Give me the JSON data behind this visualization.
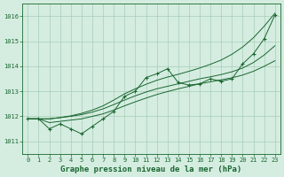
{
  "title": "Graphe pression niveau de la mer (hPa)",
  "bg_color": "#d4ede0",
  "grid_color": "#a8ccba",
  "line_color": "#1a6630",
  "ylim": [
    1010.5,
    1016.5
  ],
  "yticks": [
    1011,
    1012,
    1013,
    1014,
    1015,
    1016
  ],
  "xlim": [
    -0.5,
    23.5
  ],
  "xticks": [
    0,
    1,
    2,
    3,
    4,
    5,
    6,
    7,
    8,
    9,
    10,
    11,
    12,
    13,
    14,
    15,
    16,
    17,
    18,
    19,
    20,
    21,
    22,
    23
  ],
  "y_marker": [
    1011.9,
    1011.9,
    1011.5,
    1011.7,
    1011.5,
    1011.3,
    1011.6,
    1011.9,
    1012.2,
    1012.8,
    1013.0,
    1013.55,
    1013.7,
    1013.9,
    1013.35,
    1013.25,
    1013.3,
    1013.5,
    1013.4,
    1013.5,
    1014.1,
    1014.5,
    1015.1,
    1016.05
  ],
  "y_line1": [
    1011.9,
    1011.9,
    1011.75,
    1011.8,
    1011.85,
    1011.9,
    1012.0,
    1012.1,
    1012.25,
    1012.42,
    1012.58,
    1012.73,
    1012.87,
    1012.99,
    1013.1,
    1013.2,
    1013.3,
    1013.38,
    1013.46,
    1013.54,
    1013.65,
    1013.8,
    1014.0,
    1014.22
  ],
  "y_line2": [
    1011.9,
    1011.9,
    1011.9,
    1011.95,
    1012.0,
    1012.07,
    1012.17,
    1012.3,
    1012.47,
    1012.65,
    1012.82,
    1012.97,
    1013.1,
    1013.2,
    1013.3,
    1013.4,
    1013.5,
    1013.58,
    1013.67,
    1013.78,
    1013.93,
    1014.15,
    1014.45,
    1014.82
  ],
  "y_line3": [
    1011.9,
    1011.9,
    1011.9,
    1011.95,
    1012.02,
    1012.12,
    1012.25,
    1012.42,
    1012.65,
    1012.9,
    1013.1,
    1013.28,
    1013.44,
    1013.57,
    1013.68,
    1013.8,
    1013.93,
    1014.08,
    1014.25,
    1014.48,
    1014.77,
    1015.14,
    1015.6,
    1016.12
  ]
}
